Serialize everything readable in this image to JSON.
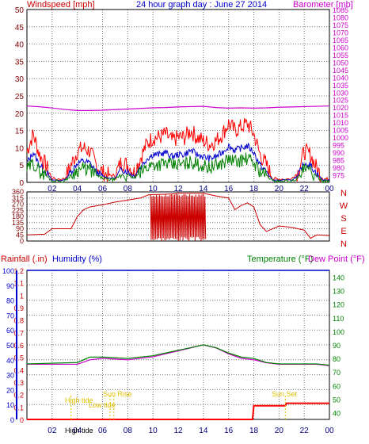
{
  "top": {
    "left_label": "Windspeed [mph]",
    "title": "24 hour graph day : June 27 2014",
    "right_label": "Barometer [mb]",
    "left_axis": {
      "min": 0,
      "max": 50,
      "ticks": [
        0,
        5,
        10,
        15,
        20,
        25,
        30,
        35,
        40,
        45,
        50
      ]
    },
    "right_axis": {
      "min": 970,
      "max": 1085,
      "ticks": [
        975,
        980,
        985,
        990,
        995,
        1000,
        1005,
        1010,
        1015,
        1020,
        1025,
        1030,
        1035,
        1040,
        1045,
        1050,
        1055,
        1060,
        1065,
        1070,
        1075,
        1080,
        1085
      ]
    },
    "x_ticks": [
      "02",
      "04",
      "06",
      "08",
      "10",
      "12",
      "14",
      "16",
      "18",
      "20",
      "22",
      "00"
    ]
  },
  "middle": {
    "left_ticks": [
      "360",
      "315",
      "270",
      "225",
      "180",
      "135",
      "90",
      "45",
      "0"
    ],
    "compass": [
      "N",
      "W",
      "S",
      "E",
      "N"
    ]
  },
  "bottom": {
    "rain_label": "Rainfall (.in)",
    "humidity_label": "Humidity (%)",
    "temp_label": "Temperature (°F)",
    "dew_label": "Dew Point (°F)",
    "rain_ticks": [
      "0",
      "0.1",
      "0.2",
      "0.3",
      "0.4",
      "0.5",
      "0.6",
      "0.7",
      "0.8",
      "0.9",
      "1",
      "1.1",
      "1.2"
    ],
    "hum_ticks": [
      "0",
      "10",
      "20",
      "30",
      "40",
      "50",
      "60",
      "70",
      "80",
      "90",
      "100"
    ],
    "temp_ticks": [
      "40",
      "50",
      "60",
      "70",
      "80",
      "90",
      "100",
      "110",
      "120",
      "130",
      "140"
    ],
    "x_ticks": [
      "02",
      "04",
      "06",
      "08",
      "10",
      "12",
      "14",
      "16",
      "18",
      "20",
      "22",
      "00"
    ],
    "annotations": {
      "high_tide": "High tide",
      "low_tide": "Low tide",
      "sun_rise": "Sun Rise",
      "sun_set": "Sun Set",
      "high_tide_2": "High tide"
    }
  },
  "colors": {
    "wind": "#ff0000",
    "gust": "#0000cc",
    "green": "#008000",
    "baro": "#cc00cc",
    "rain": "#ff0000",
    "hum": "#0000cc",
    "temp": "#008000",
    "dew": "#cc00cc",
    "annot": "#e0c000",
    "label_dark": "#800000"
  },
  "chart_data": [
    {
      "type": "line",
      "name_hint": "wind_and_barometer",
      "x_range_hours": [
        0,
        24
      ],
      "series": [
        {
          "name": "Windspeed [mph]",
          "axis": "left",
          "points": [
            [
              0,
              9
            ],
            [
              0.5,
              14
            ],
            [
              1,
              8
            ],
            [
              1.5,
              5
            ],
            [
              2,
              1
            ],
            [
              3,
              1
            ],
            [
              3.5,
              5
            ],
            [
              4,
              9
            ],
            [
              4.5,
              10
            ],
            [
              5,
              9
            ],
            [
              5.5,
              5
            ],
            [
              6,
              3
            ],
            [
              6.5,
              2
            ],
            [
              7,
              2
            ],
            [
              7.5,
              6
            ],
            [
              8,
              5
            ],
            [
              8.5,
              3
            ],
            [
              9,
              7
            ],
            [
              9.5,
              11
            ],
            [
              10,
              13
            ],
            [
              10.5,
              13
            ],
            [
              11,
              14
            ],
            [
              11.5,
              12
            ],
            [
              12,
              13
            ],
            [
              12.5,
              13
            ],
            [
              13,
              15
            ],
            [
              13.5,
              13
            ],
            [
              14,
              12
            ],
            [
              14.5,
              11
            ],
            [
              15,
              12
            ],
            [
              15.5,
              14
            ],
            [
              16,
              17
            ],
            [
              16.5,
              15
            ],
            [
              17,
              16
            ],
            [
              17.5,
              17
            ],
            [
              18,
              14
            ],
            [
              18.5,
              8
            ],
            [
              19,
              5
            ],
            [
              19.5,
              1
            ],
            [
              20,
              1
            ],
            [
              21,
              1
            ],
            [
              21.5,
              3
            ],
            [
              22,
              9
            ],
            [
              22.5,
              8
            ],
            [
              23,
              4
            ],
            [
              23.5,
              1
            ],
            [
              24,
              1
            ]
          ]
        },
        {
          "name": "Barometer [mb]",
          "axis": "right",
          "points": [
            [
              0,
              1020.8
            ],
            [
              1,
              1020.3
            ],
            [
              2,
              1019.5
            ],
            [
              3,
              1018.5
            ],
            [
              4,
              1017.8
            ],
            [
              5,
              1017.8
            ],
            [
              6,
              1018.0
            ],
            [
              7,
              1018.4
            ],
            [
              8,
              1018.8
            ],
            [
              9,
              1019.2
            ],
            [
              10,
              1019.6
            ],
            [
              11,
              1019.8
            ],
            [
              12,
              1020.2
            ],
            [
              13,
              1020.4
            ],
            [
              14,
              1020.6
            ],
            [
              15,
              1019.8
            ],
            [
              16,
              1019.4
            ],
            [
              17,
              1019.6
            ],
            [
              18,
              1019.4
            ],
            [
              19,
              1019.6
            ],
            [
              20,
              1020.0
            ],
            [
              21,
              1020.2
            ],
            [
              22,
              1020.4
            ],
            [
              23,
              1020.6
            ],
            [
              24,
              1020.8
            ]
          ]
        }
      ]
    },
    {
      "type": "line",
      "name_hint": "wind_direction",
      "series": [
        {
          "name": "",
          "points": [
            [
              0,
              45
            ],
            [
              1.4,
              50
            ],
            [
              2,
              90
            ],
            [
              3.5,
              90
            ],
            [
              4,
              180
            ],
            [
              4.5,
              230
            ],
            [
              5,
              250
            ],
            [
              6,
              265
            ],
            [
              7,
              285
            ],
            [
              8,
              300
            ],
            [
              9,
              315
            ],
            [
              9.7,
              340
            ],
            [
              10,
              340
            ],
            [
              11.5,
              345
            ],
            [
              12,
              350
            ],
            [
              14,
              350
            ],
            [
              15,
              330
            ],
            [
              16,
              315
            ],
            [
              16.5,
              230
            ],
            [
              17,
              260
            ],
            [
              17.5,
              280
            ],
            [
              18,
              250
            ],
            [
              18.5,
              120
            ],
            [
              19,
              70
            ],
            [
              20,
              110
            ],
            [
              21,
              100
            ],
            [
              21.5,
              90
            ],
            [
              22,
              80
            ],
            [
              22.5,
              20
            ],
            [
              23,
              45
            ],
            [
              24,
              40
            ]
          ]
        }
      ]
    },
    {
      "type": "line",
      "name_hint": "rain_humidity_temp",
      "series": [
        {
          "name": "Humidity (%)",
          "axis": "humidity",
          "points": [
            [
              0,
              37
            ],
            [
              4,
              37
            ],
            [
              5,
              40
            ],
            [
              6,
              41
            ],
            [
              7,
              40.5
            ],
            [
              8,
              40
            ],
            [
              9,
              41
            ],
            [
              10,
              42
            ],
            [
              11,
              44
            ],
            [
              12,
              46
            ],
            [
              13,
              48
            ],
            [
              14,
              50
            ],
            [
              15,
              48
            ],
            [
              16,
              44
            ],
            [
              17,
              41
            ],
            [
              18,
              40
            ],
            [
              19,
              38
            ],
            [
              20,
              37
            ],
            [
              21,
              37
            ],
            [
              22,
              37
            ],
            [
              23,
              37
            ],
            [
              24,
              36
            ]
          ]
        },
        {
          "name": "Temperature (°F)",
          "axis": "temp",
          "points": [
            [
              0,
              76
            ],
            [
              4,
              77
            ],
            [
              5,
              81
            ],
            [
              6,
              81
            ],
            [
              7,
              80.5
            ],
            [
              8,
              80
            ],
            [
              9,
              81
            ],
            [
              10,
              82
            ],
            [
              11,
              84
            ],
            [
              12,
              86
            ],
            [
              13,
              88
            ],
            [
              14,
              90
            ],
            [
              15,
              88
            ],
            [
              16,
              84
            ],
            [
              17,
              81
            ],
            [
              18,
              80
            ],
            [
              19,
              77
            ],
            [
              20,
              76
            ],
            [
              21,
              76
            ],
            [
              22,
              76
            ],
            [
              23,
              76
            ],
            [
              24,
              75
            ]
          ]
        },
        {
          "name": "Rainfall (.in)",
          "axis": "rain",
          "points": [
            [
              0,
              0
            ],
            [
              17.9,
              0
            ],
            [
              18,
              0.11
            ],
            [
              20.5,
              0.11
            ],
            [
              20.6,
              0.13
            ],
            [
              24,
              0.13
            ]
          ]
        }
      ]
    }
  ]
}
